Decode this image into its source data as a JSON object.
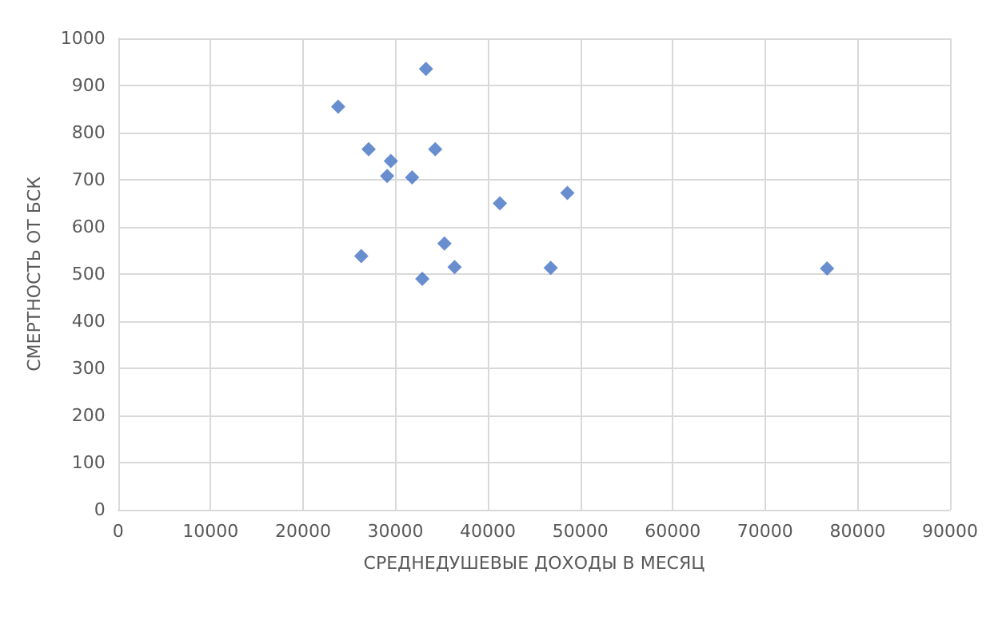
{
  "chart_data": {
    "type": "scatter",
    "xlabel": "СРЕДНЕДУШЕВЫЕ ДОХОДЫ В МЕСЯЦ",
    "ylabel": "СМЕРТНОСТЬ ОТ БСК",
    "x": [
      23800,
      33300,
      27100,
      34300,
      29500,
      29100,
      31800,
      41300,
      48600,
      26300,
      35300,
      36400,
      32900,
      46800,
      76700
    ],
    "values": [
      855,
      935,
      765,
      765,
      740,
      708,
      705,
      650,
      672,
      538,
      565,
      515,
      490,
      513,
      512
    ],
    "color": "#4472c4",
    "marker": "diamond",
    "grid": true,
    "xlim": [
      0,
      90000
    ],
    "xticks": [
      0,
      10000,
      20000,
      30000,
      40000,
      50000,
      60000,
      70000,
      80000,
      90000
    ],
    "ylim": [
      0,
      1000
    ],
    "yticks": [
      0,
      100,
      200,
      300,
      400,
      500,
      600,
      700,
      800,
      900,
      1000
    ]
  }
}
